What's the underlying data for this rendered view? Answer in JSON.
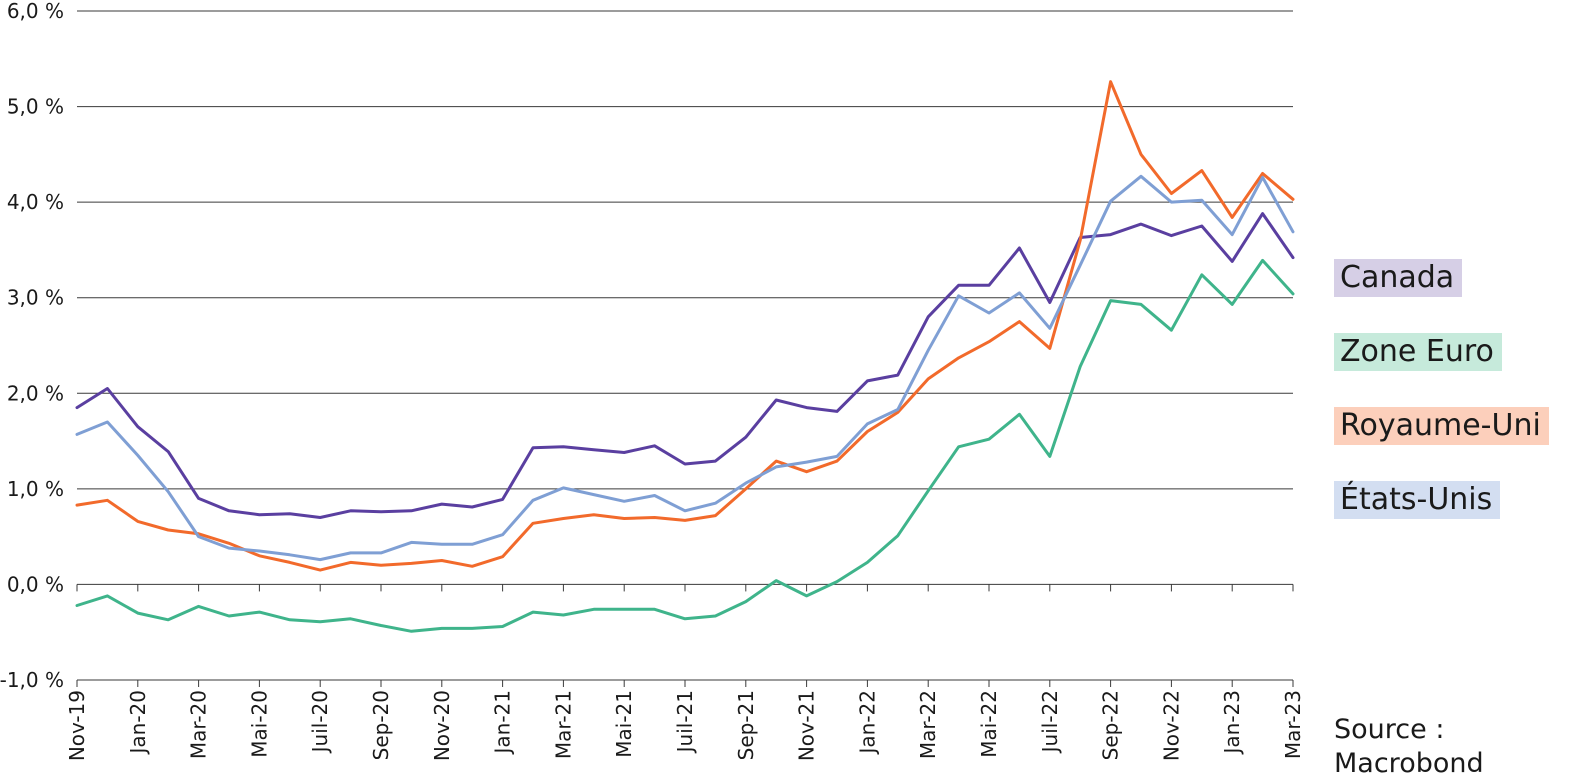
{
  "chart_data": {
    "type": "line",
    "title": "",
    "xlabel": "",
    "ylabel": "",
    "ylim": [
      -1.0,
      6.0
    ],
    "y_ticks": [
      "6,0 %",
      "5,0 %",
      "4,0 %",
      "3,0 %",
      "2,0 %",
      "1,0 %",
      "0,0 %",
      "-1,0 %"
    ],
    "y_tick_values": [
      6,
      5,
      4,
      3,
      2,
      1,
      0,
      -1
    ],
    "x_tick_labels": [
      "Nov-19",
      "Jan-20",
      "Mar-20",
      "Mai-20",
      "Juil-20",
      "Sep-20",
      "Nov-20",
      "Jan-21",
      "Mar-21",
      "Mai-21",
      "Juil-21",
      "Sep-21",
      "Nov-21",
      "Jan-22",
      "Mar-22",
      "Mai-22",
      "Juil-22",
      "Sep-22",
      "Nov-22",
      "Jan-23",
      "Mar-23"
    ],
    "x": [
      "Nov-19",
      "Dec-19",
      "Jan-20",
      "Feb-20",
      "Mar-20",
      "Apr-20",
      "Mai-20",
      "Jun-20",
      "Juil-20",
      "Aug-20",
      "Sep-20",
      "Oct-20",
      "Nov-20",
      "Dec-20",
      "Jan-21",
      "Feb-21",
      "Mar-21",
      "Apr-21",
      "Mai-21",
      "Jun-21",
      "Juil-21",
      "Aug-21",
      "Sep-21",
      "Oct-21",
      "Nov-21",
      "Dec-21",
      "Jan-22",
      "Feb-22",
      "Mar-22",
      "Apr-22",
      "Mai-22",
      "Jun-22",
      "Juil-22",
      "Aug-22",
      "Sep-22",
      "Oct-22",
      "Nov-22",
      "Dec-22",
      "Jan-23",
      "Feb-23",
      "Mar-23"
    ],
    "grid": true,
    "legend_position": "right",
    "series": [
      {
        "name": "Canada",
        "color": "#5a3fa0",
        "legend_bg": "#d6cfe6",
        "values": [
          1.85,
          2.05,
          1.65,
          1.39,
          0.9,
          0.77,
          0.73,
          0.74,
          0.7,
          0.77,
          0.76,
          0.77,
          0.84,
          0.81,
          0.89,
          1.43,
          1.44,
          1.41,
          1.38,
          1.45,
          1.26,
          1.29,
          1.54,
          1.93,
          1.85,
          1.81,
          2.13,
          2.19,
          2.8,
          3.13,
          3.13,
          3.52,
          2.95,
          3.63,
          3.66,
          3.77,
          3.65,
          3.75,
          3.38,
          3.88,
          3.42
        ]
      },
      {
        "name": "Zone Euro",
        "color": "#3fb48b",
        "legend_bg": "#c6eadb",
        "values": [
          -0.22,
          -0.12,
          -0.3,
          -0.37,
          -0.23,
          -0.33,
          -0.29,
          -0.37,
          -0.39,
          -0.36,
          -0.43,
          -0.49,
          -0.46,
          -0.46,
          -0.44,
          -0.29,
          -0.32,
          -0.26,
          -0.26,
          -0.26,
          -0.36,
          -0.33,
          -0.18,
          0.04,
          -0.12,
          0.03,
          0.23,
          0.51,
          0.98,
          1.44,
          1.52,
          1.78,
          1.34,
          2.28,
          2.97,
          2.93,
          2.66,
          3.24,
          2.93,
          3.39,
          3.04
        ]
      },
      {
        "name": "Royaume-Uni",
        "color": "#f26a2b",
        "legend_bg": "#fccfbb",
        "values": [
          0.83,
          0.88,
          0.66,
          0.57,
          0.53,
          0.43,
          0.3,
          0.23,
          0.15,
          0.23,
          0.2,
          0.22,
          0.25,
          0.19,
          0.29,
          0.64,
          0.69,
          0.73,
          0.69,
          0.7,
          0.67,
          0.72,
          1.0,
          1.29,
          1.18,
          1.29,
          1.6,
          1.8,
          2.15,
          2.37,
          2.54,
          2.75,
          2.47,
          3.6,
          5.26,
          4.5,
          4.09,
          4.33,
          3.84,
          4.3,
          4.03
        ]
      },
      {
        "name": "États-Unis",
        "color": "#7f9fd4",
        "legend_bg": "#d3def1",
        "values": [
          1.57,
          1.7,
          1.35,
          0.97,
          0.5,
          0.38,
          0.35,
          0.31,
          0.26,
          0.33,
          0.33,
          0.44,
          0.42,
          0.42,
          0.52,
          0.88,
          1.01,
          0.94,
          0.87,
          0.93,
          0.77,
          0.85,
          1.06,
          1.23,
          1.28,
          1.34,
          1.68,
          1.83,
          2.45,
          3.02,
          2.84,
          3.05,
          2.68,
          3.34,
          4.01,
          4.27,
          4.0,
          4.02,
          3.66,
          4.26,
          3.69
        ]
      }
    ]
  },
  "source": {
    "line1": "Source  :",
    "line2": "Macrobond"
  }
}
